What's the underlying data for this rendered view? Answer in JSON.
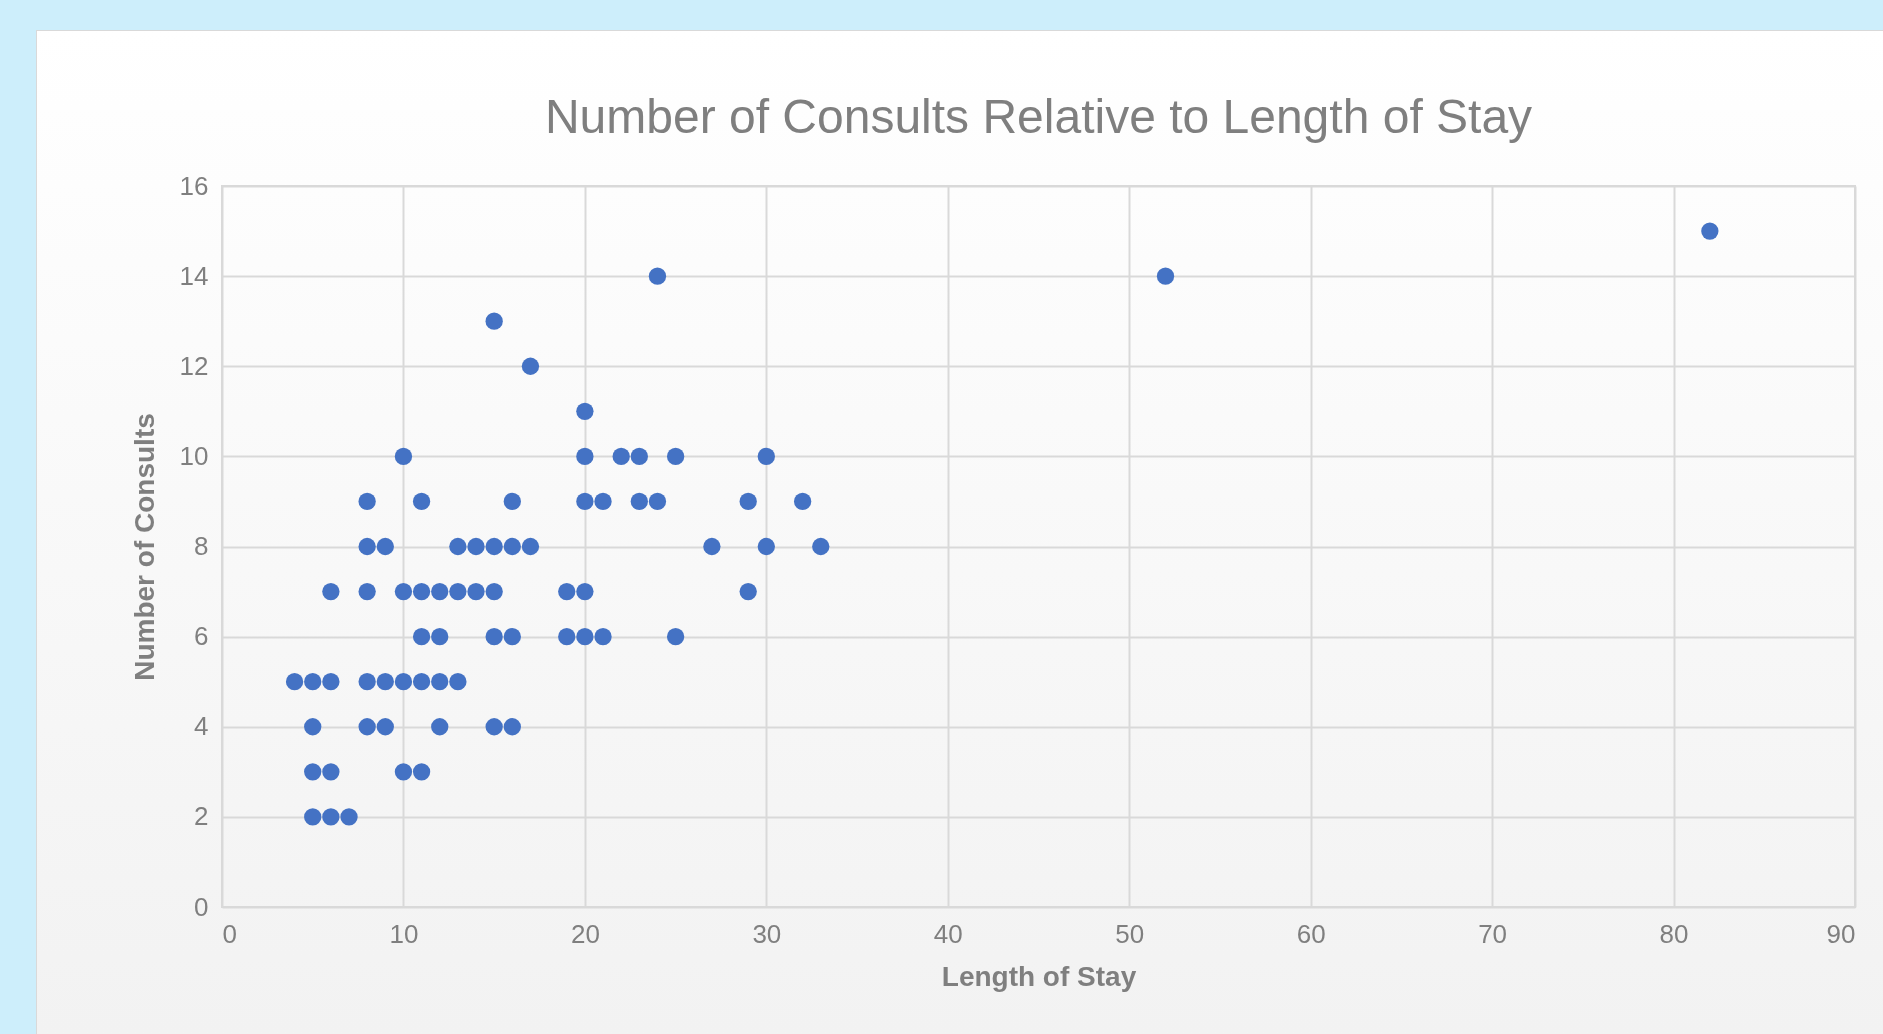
{
  "chart_data": {
    "type": "scatter",
    "title": "Number of Consults Relative to Length of Stay",
    "xlabel": "Length of Stay",
    "ylabel": "Number of Consults",
    "x": [
      82,
      24,
      52,
      15,
      17,
      20,
      10,
      20,
      22,
      23,
      25,
      30,
      8,
      11,
      16,
      20,
      21,
      23,
      24,
      29,
      32,
      8,
      9,
      13,
      14,
      15,
      16,
      17,
      27,
      30,
      33,
      6,
      8,
      10,
      11,
      12,
      13,
      14,
      15,
      19,
      20,
      29,
      11,
      12,
      15,
      16,
      19,
      20,
      21,
      25,
      4,
      5,
      6,
      8,
      9,
      10,
      11,
      12,
      13,
      5,
      8,
      9,
      12,
      15,
      16,
      5,
      6,
      10,
      11,
      5,
      6,
      7
    ],
    "series": [
      {
        "color": "#4472c4",
        "values": [
          15,
          14,
          14,
          13,
          12,
          11,
          10,
          10,
          10,
          10,
          10,
          10,
          9,
          9,
          9,
          9,
          9,
          9,
          9,
          9,
          9,
          8,
          8,
          8,
          8,
          8,
          8,
          8,
          8,
          8,
          8,
          7,
          7,
          7,
          7,
          7,
          7,
          7,
          7,
          7,
          7,
          7,
          6,
          6,
          6,
          6,
          6,
          6,
          6,
          6,
          5,
          5,
          5,
          5,
          5,
          5,
          5,
          5,
          5,
          4,
          4,
          4,
          4,
          4,
          4,
          3,
          3,
          3,
          3,
          2,
          2,
          2
        ]
      }
    ],
    "xlim": [
      0,
      90
    ],
    "xticks": [
      0,
      10,
      20,
      30,
      40,
      50,
      60,
      70,
      80,
      90
    ],
    "ylim": [
      0,
      16
    ],
    "yticks": [
      0,
      2,
      4,
      6,
      8,
      10,
      12,
      14,
      16
    ],
    "grid": true,
    "marker": "circle",
    "legend": false
  }
}
